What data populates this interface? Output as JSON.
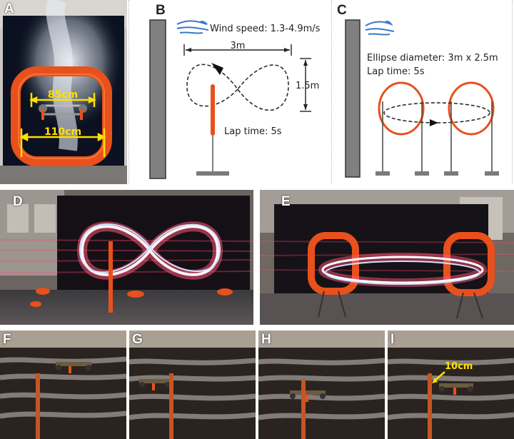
{
  "panels": {
    "A": {
      "label": "A",
      "inner_width": "85cm",
      "outer_width": "110cm"
    },
    "B": {
      "label": "B",
      "wind_speed": "Wind speed: 1.3-4.9m/s",
      "width": "3m",
      "height": "1.5m",
      "lap_time": "Lap time: 5s"
    },
    "C": {
      "label": "C",
      "ellipse": "Ellipse diameter: 3m x 2.5m",
      "lap_time": "Lap time: 5s"
    },
    "D": {
      "label": "D"
    },
    "E": {
      "label": "E"
    },
    "F": {
      "label": "F"
    },
    "G": {
      "label": "G"
    },
    "H": {
      "label": "H"
    },
    "I": {
      "label": "I",
      "distance": "10cm"
    }
  },
  "colors": {
    "gate_orange": "#e8501c",
    "pole_gray": "#7a7a7a",
    "dim_yellow": "#ffe000",
    "wind_blue": "#3a78c9"
  }
}
